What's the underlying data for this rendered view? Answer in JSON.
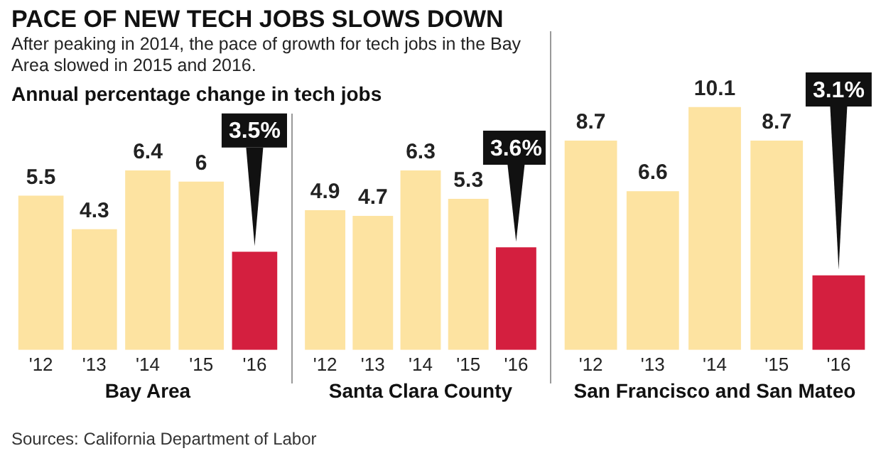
{
  "chart_data": [
    {
      "type": "bar",
      "title": "PACE OF NEW TECH JOBS SLOWS DOWN",
      "subtitle": "After peaking in 2014, the pace of growth for tech jobs in the Bay Area slowed in 2015 and 2016.",
      "annotations": [
        "Annual percentage change in tech jobs"
      ],
      "xlabel": "Bay Area",
      "categories": [
        "'12",
        "'13",
        "'14",
        "'15",
        "'16"
      ],
      "values": [
        5.5,
        4.3,
        6.4,
        6,
        3.5
      ],
      "colors": [
        "#fde3a1",
        "#fde3a1",
        "#fde3a1",
        "#fde3a1",
        "#d41f3f"
      ],
      "value_labels": [
        "5.5",
        "4.3",
        "6.4",
        "6",
        "3.5%"
      ],
      "tick_labels": "x",
      "grid": false,
      "legend": false
    },
    {
      "type": "bar",
      "xlabel": "Santa Clara County",
      "categories": [
        "'12",
        "'13",
        "'14",
        "'15",
        "'16"
      ],
      "values": [
        4.9,
        4.7,
        6.3,
        5.3,
        3.6
      ],
      "colors": [
        "#fde3a1",
        "#fde3a1",
        "#fde3a1",
        "#fde3a1",
        "#d41f3f"
      ],
      "value_labels": [
        "4.9",
        "4.7",
        "6.3",
        "5.3",
        "3.6%"
      ],
      "tick_labels": "x",
      "grid": false,
      "legend": false
    },
    {
      "type": "bar",
      "xlabel": "San Francisco and San Mateo",
      "annotations": [
        "Sources: California Department of Labor"
      ],
      "categories": [
        "'12",
        "'13",
        "'14",
        "'15",
        "'16"
      ],
      "values": [
        8.7,
        6.6,
        10.1,
        8.7,
        3.1
      ],
      "colors": [
        "#fde3a1",
        "#fde3a1",
        "#fde3a1",
        "#fde3a1",
        "#d41f3f"
      ],
      "value_labels": [
        "8.7",
        "6.6",
        "10.1",
        "8.7",
        "3.1%"
      ],
      "tick_labels": "x",
      "grid": false,
      "legend": false
    }
  ]
}
